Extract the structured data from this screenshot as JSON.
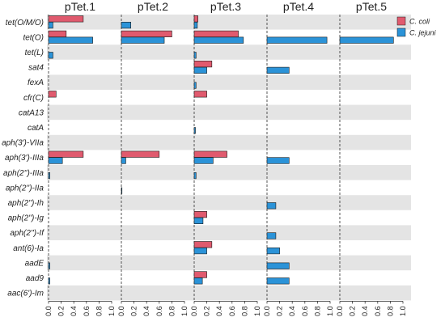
{
  "chart_data": {
    "type": "bar",
    "orientation": "horizontal",
    "facets": [
      "pTet.1",
      "pTet.2",
      "pTet.3",
      "pTet.4",
      "pTet.5"
    ],
    "categories": [
      "tet(O/M/O)",
      "tet(O)",
      "tet(L)",
      "sat4",
      "fexA",
      "cfr(C)",
      "catA13",
      "catA",
      "aph(3')-VIIa",
      "aph(3')-IIIa",
      "aph(2'')-IIIa",
      "aph(2'')-IIa",
      "aph(2'')-Ih",
      "aph(2'')-Ig",
      "aph(2'')-If",
      "ant(6)-Ia",
      "aadE",
      "aad9",
      "aac(6')-Im"
    ],
    "xlim": [
      0,
      1
    ],
    "xticks": [
      "0.0",
      "0.2",
      "0.4",
      "0.6",
      "0.8",
      "1.0"
    ],
    "alternating_row_shading": true,
    "legend_position": "top-right",
    "series": [
      {
        "name": "C. coli",
        "color": "#e05a6e",
        "values": [
          [
            0.55,
            0.28,
            0,
            0,
            0,
            0.12,
            0,
            0,
            0,
            0.55,
            0,
            0,
            0,
            0,
            0,
            0,
            0,
            0,
            0
          ],
          [
            0,
            0.8,
            0,
            0,
            0,
            0,
            0,
            0,
            0,
            0.6,
            0,
            0,
            0,
            0,
            0,
            0,
            0,
            0,
            0
          ],
          [
            0.06,
            0.7,
            0,
            0.28,
            0,
            0.2,
            0,
            0,
            0,
            0.52,
            0,
            0,
            0,
            0.2,
            0,
            0.28,
            0,
            0.2,
            0
          ],
          [
            0,
            0,
            0,
            0,
            0,
            0,
            0,
            0,
            0,
            0,
            0,
            0,
            0,
            0,
            0,
            0,
            0,
            0,
            0
          ],
          [
            0,
            0,
            0,
            0,
            0,
            0,
            0,
            0,
            0,
            0,
            0,
            0,
            0,
            0,
            0,
            0,
            0,
            0,
            0
          ]
        ]
      },
      {
        "name": "C. jejuni",
        "color": "#2b93d8",
        "values": [
          [
            0.07,
            0.7,
            0.07,
            0,
            0,
            0,
            0,
            0,
            0,
            0.22,
            0.02,
            0,
            0,
            0,
            0,
            0,
            0.02,
            0.02,
            0
          ],
          [
            0.15,
            0.68,
            0,
            0,
            0,
            0,
            0,
            0,
            0,
            0.07,
            0,
            0.01,
            0,
            0,
            0,
            0,
            0,
            0,
            0
          ],
          [
            0.05,
            0.78,
            0.03,
            0.2,
            0.03,
            0,
            0,
            0.02,
            0,
            0.3,
            0.03,
            0,
            0,
            0.14,
            0,
            0.2,
            0,
            0.13,
            0
          ],
          [
            0,
            0.95,
            0,
            0.35,
            0,
            0,
            0,
            0,
            0,
            0.35,
            0,
            0,
            0.14,
            0,
            0.14,
            0.2,
            0.35,
            0.35,
            0
          ],
          [
            0,
            0.85,
            0,
            0,
            0,
            0,
            0,
            0,
            0,
            0,
            0,
            0,
            0,
            0,
            0,
            0,
            0,
            0,
            0
          ]
        ]
      }
    ]
  }
}
